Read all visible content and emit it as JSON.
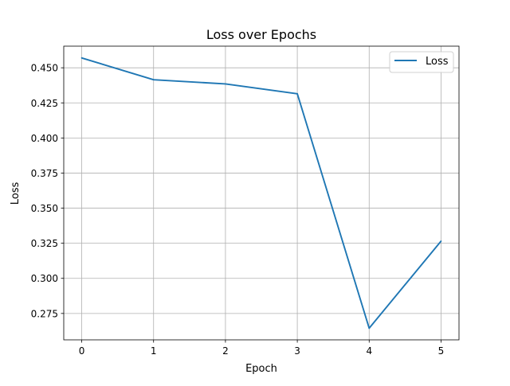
{
  "chart_data": {
    "type": "line",
    "title": "Loss over Epochs",
    "xlabel": "Epoch",
    "ylabel": "Loss",
    "x": [
      0,
      1,
      2,
      3,
      4,
      5
    ],
    "series": [
      {
        "name": "Loss",
        "color": "#1f77b4",
        "values": [
          0.457,
          0.4415,
          0.4385,
          0.4315,
          0.2645,
          0.3265
        ]
      }
    ],
    "xticks": [
      "0",
      "1",
      "2",
      "3",
      "4",
      "5"
    ],
    "yticks": [
      "0.275",
      "0.300",
      "0.325",
      "0.350",
      "0.375",
      "0.400",
      "0.425",
      "0.450"
    ],
    "xlim": [
      -0.25,
      5.25
    ],
    "ylim": [
      0.2562,
      0.4654
    ],
    "grid": true,
    "legend": "top-right"
  }
}
